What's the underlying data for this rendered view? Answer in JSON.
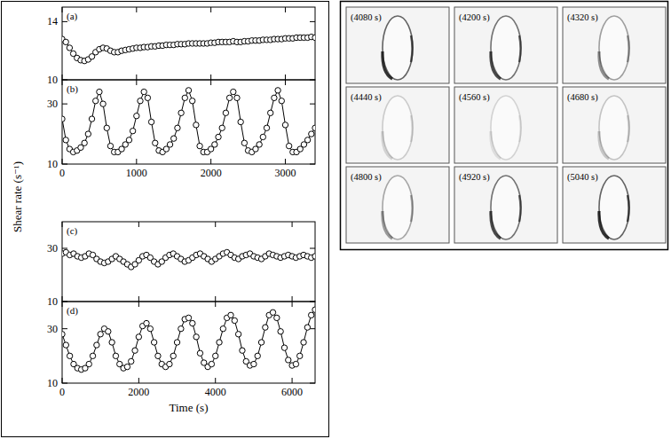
{
  "figure": {
    "ylabel": "Shear rate (s⁻¹)"
  },
  "chart_data": [
    {
      "type": "line",
      "title": "(a)",
      "marker": "circle-open",
      "line_style": "solid",
      "color": "#000000",
      "tick_labels": "y",
      "xlim": [
        0,
        3400
      ],
      "xticks": [
        0,
        1000,
        2000,
        3000
      ],
      "ylim": [
        10,
        15
      ],
      "yticks": [
        10,
        14
      ],
      "x": [
        0,
        50,
        100,
        150,
        200,
        250,
        300,
        350,
        400,
        450,
        500,
        550,
        600,
        650,
        700,
        750,
        800,
        850,
        900,
        950,
        1000,
        1050,
        1100,
        1150,
        1200,
        1250,
        1300,
        1350,
        1400,
        1450,
        1500,
        1550,
        1600,
        1650,
        1700,
        1750,
        1800,
        1850,
        1900,
        1950,
        2000,
        2050,
        2100,
        2150,
        2200,
        2250,
        2300,
        2350,
        2400,
        2450,
        2500,
        2550,
        2600,
        2650,
        2700,
        2750,
        2800,
        2850,
        2900,
        2950,
        3000,
        3050,
        3100,
        3150,
        3200,
        3250,
        3300,
        3350,
        3400
      ],
      "values": [
        12.8,
        12.6,
        12.2,
        11.8,
        11.5,
        11.35,
        11.3,
        11.4,
        11.6,
        11.9,
        12.1,
        12.2,
        12.15,
        12.0,
        11.9,
        11.9,
        12.0,
        12.05,
        12.1,
        12.15,
        12.2,
        12.2,
        12.25,
        12.25,
        12.3,
        12.3,
        12.35,
        12.35,
        12.4,
        12.4,
        12.4,
        12.45,
        12.45,
        12.45,
        12.5,
        12.5,
        12.5,
        12.5,
        12.5,
        12.5,
        12.55,
        12.55,
        12.6,
        12.6,
        12.6,
        12.6,
        12.65,
        12.6,
        12.6,
        12.65,
        12.65,
        12.7,
        12.7,
        12.7,
        12.75,
        12.75,
        12.75,
        12.8,
        12.8,
        12.8,
        12.85,
        12.85,
        12.85,
        12.9,
        12.9,
        12.9,
        12.9,
        12.95,
        12.9
      ]
    },
    {
      "type": "line",
      "title": "(b)",
      "marker": "circle-open",
      "line_style": "solid",
      "color": "#000000",
      "xlim": [
        0,
        3400
      ],
      "xticks": [
        0,
        1000,
        2000,
        3000
      ],
      "ylim": [
        10,
        38
      ],
      "yticks": [
        10,
        30
      ],
      "x": [
        0,
        50,
        100,
        150,
        200,
        250,
        300,
        350,
        400,
        450,
        500,
        550,
        600,
        650,
        700,
        750,
        800,
        850,
        900,
        950,
        1000,
        1050,
        1100,
        1150,
        1200,
        1250,
        1300,
        1350,
        1400,
        1450,
        1500,
        1550,
        1600,
        1650,
        1700,
        1750,
        1800,
        1850,
        1900,
        1950,
        2000,
        2050,
        2100,
        2150,
        2200,
        2250,
        2300,
        2350,
        2400,
        2450,
        2500,
        2550,
        2600,
        2650,
        2700,
        2750,
        2800,
        2850,
        2900,
        2950,
        3000,
        3050,
        3100,
        3150,
        3200,
        3250,
        3300,
        3350,
        3400
      ],
      "values": [
        25,
        18,
        15,
        14,
        14.5,
        15.5,
        17,
        20,
        25,
        31,
        34,
        30,
        22,
        16,
        14,
        14,
        15,
        16.5,
        18,
        21,
        26,
        31,
        34,
        32,
        24,
        17,
        14.5,
        14,
        15,
        16.5,
        18.5,
        22,
        27,
        32,
        34.5,
        31,
        23,
        16,
        14,
        14,
        15,
        16.5,
        19,
        22,
        27,
        32,
        34,
        32,
        24,
        17,
        14.5,
        14,
        15,
        16.5,
        19,
        22,
        27,
        32,
        34.5,
        31,
        23,
        16,
        14,
        14,
        15,
        16.5,
        18,
        20,
        22
      ]
    },
    {
      "type": "line",
      "title": "(c)",
      "marker": "circle-open",
      "line_style": "solid",
      "color": "#000000",
      "tick_labels": "y",
      "xlim": [
        0,
        6600
      ],
      "xticks": [
        0,
        2000,
        4000,
        6000
      ],
      "ylim": [
        10,
        40
      ],
      "yticks": [
        10,
        30
      ],
      "x": [
        0,
        100,
        200,
        300,
        400,
        500,
        600,
        700,
        800,
        900,
        1000,
        1100,
        1200,
        1300,
        1400,
        1500,
        1600,
        1700,
        1800,
        1900,
        2000,
        2100,
        2200,
        2300,
        2400,
        2500,
        2600,
        2700,
        2800,
        2900,
        3000,
        3100,
        3200,
        3300,
        3400,
        3500,
        3600,
        3700,
        3800,
        3900,
        4000,
        4100,
        4200,
        4300,
        4400,
        4500,
        4600,
        4700,
        4800,
        4900,
        5000,
        5100,
        5200,
        5300,
        5400,
        5500,
        5600,
        5700,
        5800,
        5900,
        6000,
        6100,
        6200,
        6300,
        6400,
        6500,
        6600
      ],
      "values": [
        28,
        28.5,
        27.5,
        28,
        27,
        26.5,
        27,
        28,
        27.5,
        26,
        25,
        24.5,
        25,
        26,
        27,
        26,
        25,
        24,
        23,
        24,
        25.5,
        27,
        27.5,
        26.5,
        25,
        24,
        25,
        26.5,
        27.5,
        28,
        27,
        26,
        25,
        25.5,
        26.5,
        27.5,
        28,
        27,
        26,
        25,
        26,
        27,
        28,
        28.5,
        27.5,
        26.5,
        26,
        27,
        27.5,
        28,
        27,
        26.5,
        26,
        27,
        28,
        27.5,
        27,
        26.5,
        27,
        27.5,
        27,
        26.5,
        27,
        27.5,
        27,
        26.5,
        27
      ]
    },
    {
      "type": "line",
      "title": "(d)",
      "xlabel": "Time (s)",
      "marker": "circle-open",
      "line_style": "solid",
      "color": "#000000",
      "xlim": [
        0,
        6600
      ],
      "xticks": [
        0,
        2000,
        4000,
        6000
      ],
      "ylim": [
        10,
        40
      ],
      "yticks": [
        10,
        30
      ],
      "x": [
        0,
        100,
        200,
        300,
        400,
        500,
        600,
        700,
        800,
        900,
        1000,
        1100,
        1200,
        1300,
        1400,
        1500,
        1600,
        1700,
        1800,
        1900,
        2000,
        2100,
        2200,
        2300,
        2400,
        2500,
        2600,
        2700,
        2800,
        2900,
        3000,
        3100,
        3200,
        3300,
        3400,
        3500,
        3600,
        3700,
        3800,
        3900,
        4000,
        4100,
        4200,
        4300,
        4400,
        4500,
        4600,
        4700,
        4800,
        4900,
        5000,
        5100,
        5200,
        5300,
        5400,
        5500,
        5600,
        5700,
        5800,
        5900,
        6000,
        6100,
        6200,
        6300,
        6400,
        6500,
        6600
      ],
      "values": [
        28,
        24,
        20,
        17,
        15.5,
        15,
        15.5,
        17,
        20,
        24,
        28,
        30,
        29,
        25,
        20,
        17,
        15.5,
        16,
        18,
        22,
        27,
        31,
        32,
        30,
        25,
        20,
        17,
        16,
        17,
        20,
        25,
        30,
        33.5,
        34,
        32,
        27,
        21,
        17.5,
        16,
        17,
        20,
        25,
        30,
        34,
        35,
        33,
        28,
        22,
        18,
        16.5,
        17,
        20,
        25,
        30.5,
        35,
        36,
        34,
        29,
        23,
        18.5,
        16.5,
        17,
        20,
        25,
        30.5,
        35,
        37
      ]
    }
  ],
  "images": {
    "frames": [
      {
        "label": "(4080 s)"
      },
      {
        "label": "(4200 s)"
      },
      {
        "label": "(4320 s)"
      },
      {
        "label": "(4440 s)"
      },
      {
        "label": "(4560 s)"
      },
      {
        "label": "(4680 s)"
      },
      {
        "label": "(4800 s)"
      },
      {
        "label": "(4920 s)"
      },
      {
        "label": "(5040 s)"
      }
    ]
  }
}
